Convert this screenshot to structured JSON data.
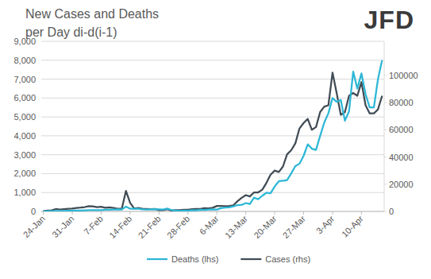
{
  "chart_data": {
    "type": "line",
    "title": "New Cases and Deaths",
    "subtitle": "per Day di-d(i-1)",
    "annotations": [
      "JFD"
    ],
    "categories": [
      "24-Jan",
      null,
      null,
      null,
      null,
      null,
      null,
      "31-Jan",
      null,
      null,
      null,
      null,
      null,
      null,
      "7-Feb",
      null,
      null,
      null,
      null,
      null,
      null,
      "14-Feb",
      null,
      null,
      null,
      null,
      null,
      null,
      "21-Feb",
      null,
      null,
      null,
      null,
      null,
      null,
      "28-Feb",
      null,
      null,
      null,
      null,
      null,
      null,
      "6-Mar",
      null,
      null,
      null,
      null,
      null,
      null,
      "13-Mar",
      null,
      null,
      null,
      null,
      null,
      null,
      "20-Mar",
      null,
      null,
      null,
      null,
      null,
      null,
      "27-Mar",
      null,
      null,
      null,
      null,
      null,
      null,
      "3-Apr",
      null,
      null,
      null,
      null,
      null,
      null,
      "10-Apr",
      null,
      null,
      null,
      null,
      null
    ],
    "series": [
      {
        "name": "Deaths (lhs)",
        "color": "#2db7d6",
        "axis": "y",
        "values": [
          8,
          16,
          15,
          24,
          26,
          26,
          38,
          43,
          46,
          45,
          57,
          64,
          66,
          73,
          73,
          86,
          89,
          97,
          108,
          97,
          254,
          143,
          143,
          142,
          106,
          98,
          115,
          118,
          109,
          97,
          150,
          71,
          52,
          29,
          44,
          37,
          68,
          55,
          89,
          75,
          95,
          107,
          100,
          176,
          204,
          214,
          268,
          336,
          349,
          441,
          396,
          730,
          643,
          831,
          989,
          960,
          1321,
          1599,
          1628,
          1656,
          2016,
          2395,
          2527,
          2944,
          3552,
          3320,
          3254,
          4000,
          4700,
          5200,
          6000,
          5800,
          5900,
          4800,
          5300,
          7400,
          6500,
          7300,
          6200,
          5500,
          5500,
          7000,
          8000
        ]
      },
      {
        "name": "Cases (rhs)",
        "color": "#414c55",
        "axis": "y2",
        "values": [
          260,
          680,
          790,
          1770,
          1460,
          1740,
          1980,
          2100,
          2600,
          2800,
          3200,
          3900,
          3700,
          3200,
          3400,
          2700,
          3000,
          2500,
          2000,
          2100,
          15100,
          6400,
          2100,
          2600,
          2000,
          1900,
          1700,
          1800,
          1000,
          1000,
          1600,
          600,
          900,
          900,
          1300,
          1200,
          1700,
          1800,
          1900,
          2400,
          2300,
          2700,
          4000,
          4000,
          3800,
          4000,
          4500,
          7500,
          10000,
          12000,
          11000,
          14000,
          14000,
          16000,
          21000,
          27000,
          30000,
          29000,
          33000,
          42000,
          45000,
          50000,
          61000,
          65000,
          68000,
          60000,
          62000,
          73000,
          77000,
          78000,
          102000,
          87000,
          71000,
          73000,
          85000,
          87000,
          85000,
          95000,
          78000,
          72000,
          72000,
          75000,
          85000
        ]
      }
    ],
    "ylim": [
      0,
      9000
    ],
    "yticks": [
      0,
      {
        "value": 1000,
        "label": "1,000"
      },
      {
        "value": 2000,
        "label": "2,000"
      },
      {
        "value": 3000,
        "label": "3,000"
      },
      {
        "value": 4000,
        "label": "4,000"
      },
      {
        "value": 5000,
        "label": "5,000"
      },
      {
        "value": 6000,
        "label": "6,000"
      },
      {
        "value": 7000,
        "label": "7,000"
      },
      {
        "value": 8000,
        "label": "8,000"
      },
      {
        "value": 9000,
        "label": "9,000"
      }
    ],
    "y2lim": [
      0,
      125000
    ],
    "y2ticks": [
      0,
      20000,
      40000,
      60000,
      80000,
      100000
    ],
    "grid": true,
    "legend": "bottom"
  }
}
